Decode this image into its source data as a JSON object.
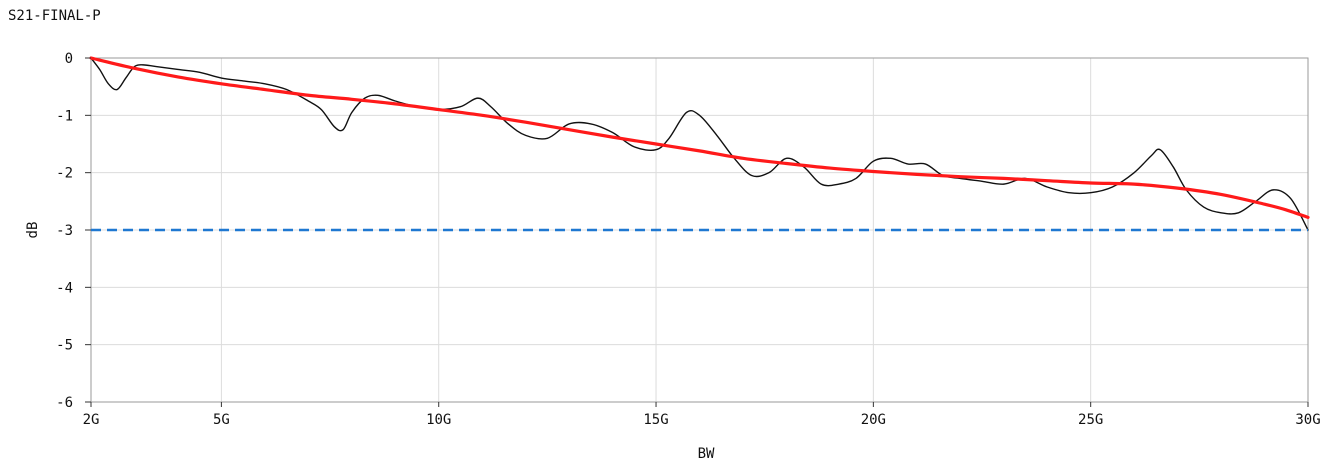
{
  "chart_data": {
    "type": "line",
    "title": "S21-FINAL-P",
    "xlabel": "BW",
    "ylabel": "dB",
    "xlim": [
      2,
      30
    ],
    "ylim": [
      -6,
      0
    ],
    "x_ticks": [
      2,
      5,
      10,
      15,
      20,
      25,
      30
    ],
    "x_tick_labels": [
      "2G",
      "5G",
      "10G",
      "15G",
      "20G",
      "25G",
      "30G"
    ],
    "y_ticks": [
      0,
      -1,
      -2,
      -3,
      -4,
      -5,
      -6
    ],
    "y_tick_labels": [
      "0",
      "-1",
      "-2",
      "-3",
      "-4",
      "-5",
      "-6"
    ],
    "grid": true,
    "series": [
      {
        "color": "#111111",
        "style": "solid",
        "x": [
          2.0,
          2.2,
          2.4,
          2.6,
          2.8,
          3.0,
          3.2,
          3.5,
          4.0,
          4.5,
          5.0,
          5.5,
          6.0,
          6.5,
          7.0,
          7.3,
          7.6,
          7.8,
          8.0,
          8.3,
          8.6,
          9.0,
          9.5,
          10.0,
          10.5,
          10.9,
          11.2,
          11.6,
          12.0,
          12.5,
          13.0,
          13.5,
          14.0,
          14.5,
          15.0,
          15.3,
          15.7,
          16.0,
          16.4,
          16.8,
          17.2,
          17.6,
          18.0,
          18.4,
          18.8,
          19.2,
          19.6,
          20.0,
          20.4,
          20.8,
          21.2,
          21.6,
          22.0,
          22.5,
          23.0,
          23.5,
          24.0,
          24.5,
          25.0,
          25.5,
          26.0,
          26.4,
          26.6,
          26.9,
          27.2,
          27.6,
          28.0,
          28.4,
          28.8,
          29.2,
          29.6,
          30.0
        ],
        "values": [
          0.0,
          -0.2,
          -0.45,
          -0.55,
          -0.35,
          -0.15,
          -0.12,
          -0.15,
          -0.2,
          -0.25,
          -0.35,
          -0.4,
          -0.45,
          -0.55,
          -0.75,
          -0.9,
          -1.2,
          -1.25,
          -0.95,
          -0.7,
          -0.65,
          -0.75,
          -0.85,
          -0.9,
          -0.85,
          -0.7,
          -0.85,
          -1.15,
          -1.35,
          -1.4,
          -1.15,
          -1.15,
          -1.3,
          -1.55,
          -1.6,
          -1.4,
          -0.95,
          -1.0,
          -1.35,
          -1.75,
          -2.05,
          -2.0,
          -1.75,
          -1.9,
          -2.2,
          -2.2,
          -2.1,
          -1.8,
          -1.75,
          -1.85,
          -1.85,
          -2.05,
          -2.1,
          -2.15,
          -2.2,
          -2.1,
          -2.25,
          -2.35,
          -2.35,
          -2.25,
          -2.0,
          -1.7,
          -1.6,
          -1.9,
          -2.3,
          -2.6,
          -2.7,
          -2.7,
          -2.5,
          -2.3,
          -2.45,
          -3.0
        ]
      },
      {
        "color": "#ff1a1a",
        "style": "solid",
        "x": [
          2.0,
          3.0,
          4.0,
          5.0,
          6.0,
          7.0,
          8.0,
          9.0,
          10.0,
          11.0,
          12.0,
          13.0,
          14.0,
          15.0,
          16.0,
          17.0,
          18.0,
          19.0,
          20.0,
          21.0,
          22.0,
          23.0,
          24.0,
          25.0,
          26.0,
          27.0,
          28.0,
          29.0,
          29.5,
          30.0
        ],
        "values": [
          0.0,
          -0.18,
          -0.33,
          -0.45,
          -0.55,
          -0.65,
          -0.72,
          -0.8,
          -0.9,
          -1.0,
          -1.12,
          -1.25,
          -1.38,
          -1.5,
          -1.62,
          -1.75,
          -1.84,
          -1.92,
          -1.98,
          -2.03,
          -2.07,
          -2.1,
          -2.14,
          -2.18,
          -2.2,
          -2.27,
          -2.38,
          -2.55,
          -2.65,
          -2.78
        ]
      },
      {
        "color": "#1f78d1",
        "style": "dashed",
        "x": [
          2,
          30
        ],
        "values": [
          -3,
          -3
        ]
      }
    ]
  }
}
